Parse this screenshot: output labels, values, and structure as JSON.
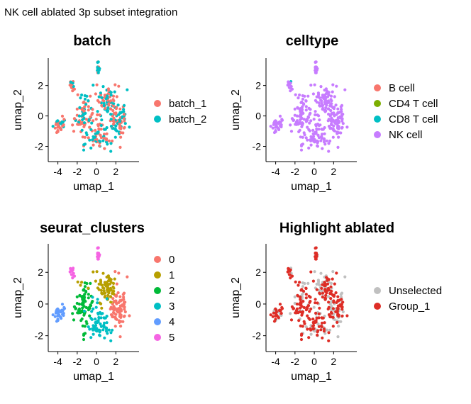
{
  "figure_title": "NK cell ablated 3p subset integration",
  "chart_data": [
    {
      "type": "scatter",
      "title": "batch",
      "xlabel": "umap_1",
      "ylabel": "umap_2",
      "xticks": [
        -4,
        -2,
        0,
        2
      ],
      "yticks": [
        -2,
        0,
        2
      ],
      "xlim": [
        -5,
        4.4
      ],
      "ylim": [
        -3,
        3.8
      ],
      "legend_position": "right",
      "series": [
        {
          "name": "batch_1",
          "color": "#F8766D"
        },
        {
          "name": "batch_2",
          "color": "#00BFC4"
        }
      ]
    },
    {
      "type": "scatter",
      "title": "celltype",
      "xlabel": "umap_1",
      "ylabel": "umap_2",
      "xticks": [
        -4,
        -2,
        0,
        2
      ],
      "yticks": [
        -2,
        0,
        2
      ],
      "xlim": [
        -5,
        4.4
      ],
      "ylim": [
        -3,
        3.8
      ],
      "legend_position": "right",
      "series": [
        {
          "name": "B cell",
          "color": "#F8766D"
        },
        {
          "name": "CD4 T cell",
          "color": "#7CAE00"
        },
        {
          "name": "CD8 T cell",
          "color": "#00BFC4"
        },
        {
          "name": "NK cell",
          "color": "#C77CFF"
        }
      ]
    },
    {
      "type": "scatter",
      "title": "seurat_clusters",
      "xlabel": "umap_1",
      "ylabel": "umap_2",
      "xticks": [
        -4,
        -2,
        0,
        2
      ],
      "yticks": [
        -2,
        0,
        2
      ],
      "xlim": [
        -5,
        4.4
      ],
      "ylim": [
        -3,
        3.8
      ],
      "legend_position": "right",
      "series": [
        {
          "name": "0",
          "color": "#F8766D"
        },
        {
          "name": "1",
          "color": "#B79F00"
        },
        {
          "name": "2",
          "color": "#00BA38"
        },
        {
          "name": "3",
          "color": "#00BFC4"
        },
        {
          "name": "4",
          "color": "#619CFF"
        },
        {
          "name": "5",
          "color": "#F564E3"
        }
      ]
    },
    {
      "type": "scatter",
      "title": "Highlight ablated",
      "xlabel": "umap_1",
      "ylabel": "umap_2",
      "xticks": [
        -4,
        -2,
        0,
        2
      ],
      "yticks": [
        -2,
        0,
        2
      ],
      "xlim": [
        -5,
        4.4
      ],
      "ylim": [
        -3,
        3.8
      ],
      "legend_position": "right",
      "series": [
        {
          "name": "Unselected",
          "color": "#C0C0C0"
        },
        {
          "name": "Group_1",
          "color": "#DE2D26"
        }
      ]
    }
  ]
}
